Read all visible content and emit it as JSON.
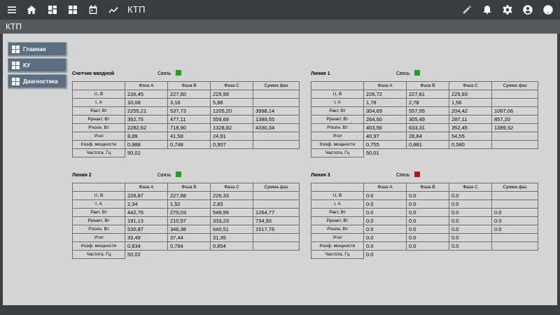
{
  "app": {
    "title": "КТП"
  },
  "page": {
    "title": "КТП"
  },
  "nav": [
    {
      "label": "Главная"
    },
    {
      "label": "КУ"
    },
    {
      "label": "Диагностика"
    }
  ],
  "row_labels": [
    "U, В",
    "I, А",
    "Ракт, Вт",
    "Рреакт, Вт",
    "Рполн, Вт",
    "Угол",
    "Коэф. мощности",
    "Частота, Гц"
  ],
  "col_headers": [
    "Фаза А",
    "Фаза В",
    "Фаза С",
    "Сумма фаз"
  ],
  "colors": {
    "ok": "#1aa51a",
    "fail": "#b01818",
    "nav": "#5b6f80"
  },
  "blocks": [
    {
      "title": "Счетчик вводной",
      "link_label": "Связь",
      "link_ok": true,
      "rows": [
        [
          "226,45",
          "227,50",
          "225,99",
          ""
        ],
        [
          "10,08",
          "3,16",
          "5,88",
          ""
        ],
        [
          "2255,21",
          "537,73",
          "1205,20",
          "3998,14"
        ],
        [
          "352,75",
          "477,11",
          "559,69",
          "1389,55"
        ],
        [
          "2282,62",
          "718,90",
          "1328,82",
          "4330,34"
        ],
        [
          "8,89",
          "41,58",
          "24,91",
          ""
        ],
        [
          "0,988",
          "0,748",
          "0,907",
          ""
        ]
      ],
      "freq": "50,02"
    },
    {
      "title": "Линия 1",
      "link_label": "Связь",
      "link_ok": true,
      "rows": [
        [
          "226,72",
          "227,81",
          "225,93",
          ""
        ],
        [
          "1,78",
          "2,78",
          "1,56",
          ""
        ],
        [
          "304,69",
          "557,95",
          "204,42",
          "1067,06"
        ],
        [
          "264,60",
          "305,49",
          "287,11",
          "857,20"
        ],
        [
          "403,56",
          "633,31",
          "352,45",
          "1389,32"
        ],
        [
          "40,97",
          "28,84",
          "54,55",
          ""
        ],
        [
          "0,755",
          "0,881",
          "0,580",
          ""
        ]
      ],
      "freq": "50,01"
    },
    {
      "title": "Линия 2",
      "link_label": "Связь",
      "link_ok": true,
      "rows": [
        [
          "226,87",
          "227,88",
          "226,33",
          ""
        ],
        [
          "2,34",
          "1,52",
          "2,83",
          ""
        ],
        [
          "442,75",
          "275,03",
          "546,99",
          "1264,77"
        ],
        [
          "191,13",
          "210,57",
          "333,23",
          "734,93"
        ],
        [
          "530,87",
          "346,38",
          "640,51",
          "1517,76"
        ],
        [
          "33,49",
          "37,44",
          "31,35",
          ""
        ],
        [
          "0,834",
          "0,794",
          "0,854",
          ""
        ]
      ],
      "freq": "50,02"
    },
    {
      "title": "Линия 3",
      "link_label": "Связь",
      "link_ok": false,
      "rows": [
        [
          "0.0",
          "0.0",
          "0.0",
          ""
        ],
        [
          "0.0",
          "0.0",
          "0.0",
          ""
        ],
        [
          "0.0",
          "0.0",
          "0.0",
          "0.0"
        ],
        [
          "0.0",
          "0.0",
          "0.0",
          "0.0"
        ],
        [
          "0.0",
          "0.0",
          "0.0",
          "0.0"
        ],
        [
          "0.0",
          "0.0",
          "0.0",
          ""
        ],
        [
          "0.0",
          "0.0",
          "0.0",
          ""
        ]
      ],
      "freq": "0.0"
    }
  ]
}
